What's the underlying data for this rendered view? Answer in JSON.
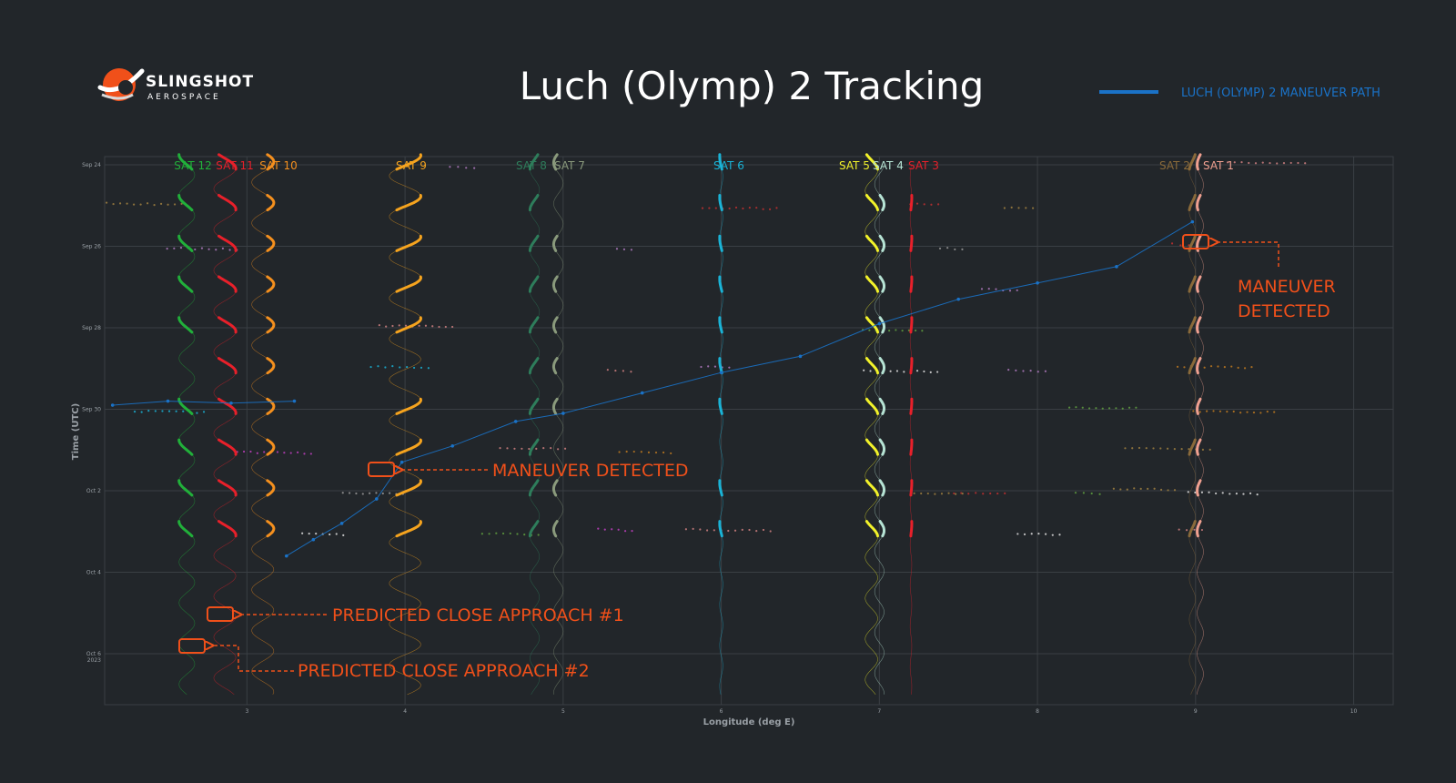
{
  "brand": {
    "name": "SLINGSHOT",
    "sub": "AEROSPACE"
  },
  "colors": {
    "background": "#22262a",
    "grid": "#3a3f44",
    "axis_text": "#9aa0a6",
    "annotation": "#f0501a",
    "maneuver_path": "#1a72c7",
    "logo_orange": "#f0501a"
  },
  "chart_data": {
    "type": "scatter",
    "title": "Luch (Olymp) 2 Tracking",
    "xlabel": "Longitude (deg E)",
    "ylabel": "Time (UTC)",
    "xlim": [
      2.1,
      10.25
    ],
    "ylim_days": [
      "Sep 23.8",
      "Oct 7.25"
    ],
    "legend": {
      "position": "top-right",
      "label": "LUCH (OLYMP) 2 MANEUVER PATH"
    },
    "x_ticks": [
      {
        "value": 3,
        "label": "3"
      },
      {
        "value": 4,
        "label": "4"
      },
      {
        "value": 5,
        "label": "5"
      },
      {
        "value": 6,
        "label": "6"
      },
      {
        "value": 7,
        "label": "7"
      },
      {
        "value": 8,
        "label": "8"
      },
      {
        "value": 9,
        "label": "9"
      },
      {
        "value": 10,
        "label": "10"
      }
    ],
    "y_ticks": [
      {
        "value": 24,
        "label": "Sep 24"
      },
      {
        "value": 26,
        "label": "Sep 26"
      },
      {
        "value": 28,
        "label": "Sep 28"
      },
      {
        "value": 30,
        "label": "Sep 30"
      },
      {
        "value": 32,
        "label": "Oct 2"
      },
      {
        "value": 34,
        "label": "Oct 4"
      },
      {
        "value": 36,
        "label": "Oct 6",
        "sub": "2023"
      }
    ],
    "satellites": [
      {
        "name": "SAT 12",
        "color": "#21b03a",
        "lon": 2.62,
        "amp": 0.05
      },
      {
        "name": "SAT 11",
        "color": "#e8202a",
        "lon": 2.86,
        "amp": 0.07
      },
      {
        "name": "SAT 10",
        "color": "#f5901e",
        "lon": 3.1,
        "amp": 0.07
      },
      {
        "name": "SAT 9",
        "color": "#f5a31e",
        "lon": 4.0,
        "amp": 0.1
      },
      {
        "name": "SAT 8",
        "color": "#2e7d5b",
        "lon": 4.82,
        "amp": 0.03
      },
      {
        "name": "SAT 7",
        "color": "#8a9a7c",
        "lon": 4.97,
        "amp": 0.03
      },
      {
        "name": "SAT 6",
        "color": "#1ab3d6",
        "lon": 6.0,
        "amp": 0.01
      },
      {
        "name": "SAT 5",
        "color": "#f2f22a",
        "lon": 6.95,
        "amp": 0.04
      },
      {
        "name": "SAT 4",
        "color": "#b6e3d4",
        "lon": 7.0,
        "amp": 0.03
      },
      {
        "name": "SAT 3",
        "color": "#e8202a",
        "lon": 7.2,
        "amp": 0.005
      },
      {
        "name": "SAT 2",
        "color": "#8a6a3a",
        "lon": 8.98,
        "amp": 0.02
      },
      {
        "name": "SAT 1",
        "color": "#f0a090",
        "lon": 9.03,
        "amp": 0.02
      }
    ],
    "maneuver_path": [
      [
        2.15,
        29.9
      ],
      [
        2.5,
        29.8
      ],
      [
        2.9,
        29.85
      ],
      [
        3.3,
        29.8
      ],
      [
        3.25,
        33.6
      ],
      [
        3.42,
        33.2
      ],
      [
        3.6,
        32.8
      ],
      [
        3.82,
        32.2
      ],
      [
        3.98,
        31.3
      ],
      [
        4.3,
        30.9
      ],
      [
        4.7,
        30.3
      ],
      [
        5.0,
        30.1
      ],
      [
        5.5,
        29.6
      ],
      [
        6.0,
        29.1
      ],
      [
        6.5,
        28.7
      ],
      [
        7.0,
        27.9
      ],
      [
        7.5,
        27.3
      ],
      [
        8.0,
        26.9
      ],
      [
        8.5,
        26.5
      ],
      [
        8.98,
        25.4
      ]
    ],
    "annotations": [
      {
        "text": "MANEUVER",
        "text2": "DETECTED",
        "lon": 8.98,
        "day": 25.5
      },
      {
        "text": "MANEUVER DETECTED",
        "lon": 3.84,
        "day": 31.5
      },
      {
        "text": "PREDICTED CLOSE APPROACH #1",
        "lon": 2.78,
        "day": 35.4
      },
      {
        "text": "PREDICTED CLOSE APPROACH #2",
        "lon": 2.6,
        "day": 36.15
      }
    ]
  }
}
